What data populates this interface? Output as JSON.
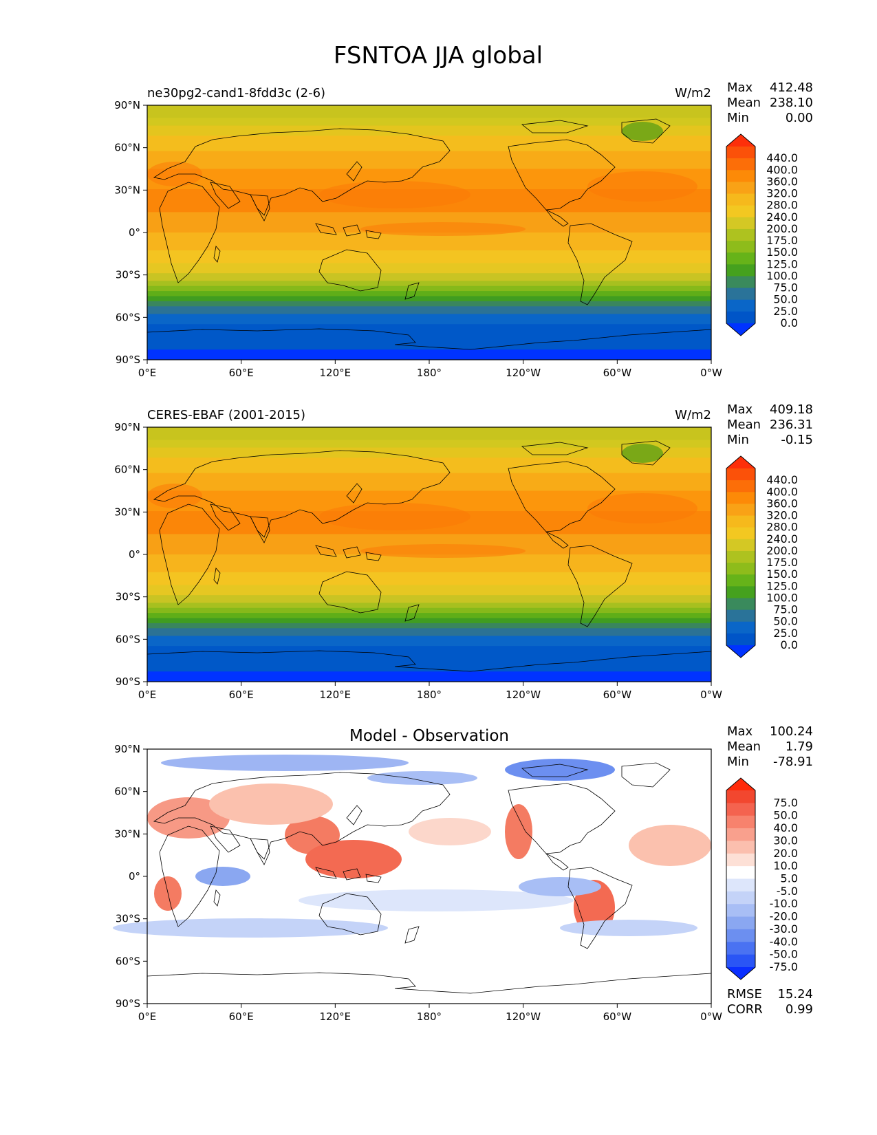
{
  "figure": {
    "title": "FSNTOA JJA global"
  },
  "axes": {
    "lat_ticks": [
      "90°N",
      "60°N",
      "30°N",
      "0°",
      "30°S",
      "60°S",
      "90°S"
    ],
    "lon_ticks": [
      "0°E",
      "60°E",
      "120°E",
      "180°",
      "120°W",
      "60°W",
      "0°W"
    ]
  },
  "panels": [
    {
      "id": "model",
      "left_title": "ne30pg2-cand1-8fdd3c (2-6)",
      "center_title": "",
      "units": "W/m2",
      "stats": [
        {
          "label": "Max",
          "value": "412.48"
        },
        {
          "label": "Mean",
          "value": "238.10"
        },
        {
          "label": "Min",
          "value": "0.00"
        }
      ],
      "colorbar_levels": [
        "440.0",
        "400.0",
        "360.0",
        "320.0",
        "280.0",
        "240.0",
        "200.0",
        "175.0",
        "150.0",
        "125.0",
        "100.0",
        "75.0",
        "50.0",
        "25.0",
        "0.0"
      ],
      "colorbar_colors": [
        "#fd2f0a",
        "#fb5109",
        "#fc6e08",
        "#fd8a07",
        "#f9a216",
        "#f6b91c",
        "#f3c821",
        "#d4c824",
        "#aec21f",
        "#8ebc1b",
        "#66b319",
        "#45a11e",
        "#3a8a5c",
        "#2a7399",
        "#0a66c8",
        "#0055c8",
        "#0033ff"
      ],
      "extra_stats": []
    },
    {
      "id": "obs",
      "left_title": "CERES-EBAF (2001-2015)",
      "center_title": "",
      "units": "W/m2",
      "stats": [
        {
          "label": "Max",
          "value": "409.18"
        },
        {
          "label": "Mean",
          "value": "236.31"
        },
        {
          "label": "Min",
          "value": "-0.15"
        }
      ],
      "colorbar_levels": [
        "440.0",
        "400.0",
        "360.0",
        "320.0",
        "280.0",
        "240.0",
        "200.0",
        "175.0",
        "150.0",
        "125.0",
        "100.0",
        "75.0",
        "50.0",
        "25.0",
        "0.0"
      ],
      "colorbar_colors": [
        "#fd2f0a",
        "#fb5109",
        "#fc6e08",
        "#fd8a07",
        "#f9a216",
        "#f6b91c",
        "#f3c821",
        "#d4c824",
        "#aec21f",
        "#8ebc1b",
        "#66b319",
        "#45a11e",
        "#3a8a5c",
        "#2a7399",
        "#0a66c8",
        "#0055c8",
        "#0033ff"
      ],
      "extra_stats": []
    },
    {
      "id": "diff",
      "left_title": "",
      "center_title": "Model - Observation",
      "units": "",
      "stats": [
        {
          "label": "Max",
          "value": "100.24"
        },
        {
          "label": "Mean",
          "value": "1.79"
        },
        {
          "label": "Min",
          "value": "-78.91"
        }
      ],
      "colorbar_levels": [
        "75.0",
        "50.0",
        "40.0",
        "30.0",
        "20.0",
        "10.0",
        "5.0",
        "-5.0",
        "-10.0",
        "-20.0",
        "-30.0",
        "-40.0",
        "-50.0",
        "-75.0"
      ],
      "colorbar_colors": [
        "#ff2a0a",
        "#f2472f",
        "#f4634f",
        "#f7826d",
        "#f9a08d",
        "#fbbfae",
        "#fde0d6",
        "#ffffff",
        "#dde6fb",
        "#c4d3f8",
        "#a8bef5",
        "#8aa7f1",
        "#6c8ff0",
        "#4a72f2",
        "#2a55f5",
        "#0a2fff"
      ],
      "extra_stats": [
        {
          "label": "RMSE",
          "value": "15.24"
        },
        {
          "label": "CORR",
          "value": "0.99"
        }
      ]
    }
  ]
}
